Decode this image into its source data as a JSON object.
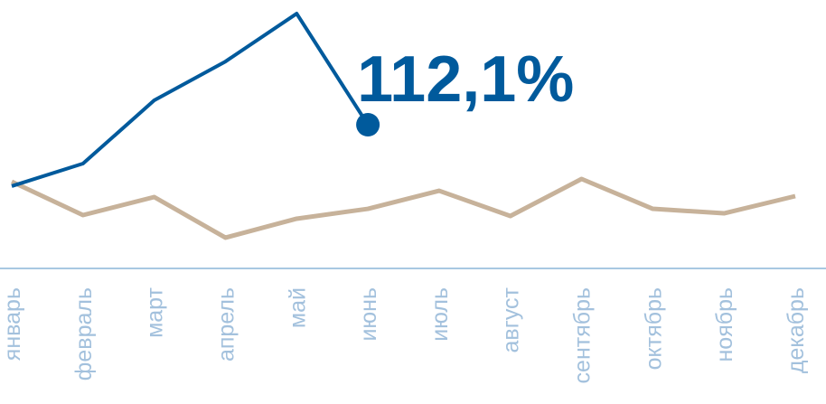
{
  "chart_data": {
    "type": "line",
    "categories": [
      "январь",
      "февраль",
      "март",
      "апрель",
      "май",
      "июнь",
      "июль",
      "август",
      "сентябрь",
      "октябрь",
      "ноябрь",
      "декабрь"
    ],
    "series": [
      {
        "color": "#c7b29a",
        "values": [
          67.7,
          41.6,
          55.7,
          24.0,
          38.8,
          46.5,
          60.6,
          40.9,
          69.8,
          46.5,
          43.0,
          56.4
        ]
      },
      {
        "color": "#005a9c",
        "values": [
          64.2,
          81.8,
          131.1,
          161.4,
          198.8,
          112.1,
          null,
          null,
          null,
          null,
          null,
          null
        ],
        "value_labels": [
          null,
          null,
          null,
          null,
          null,
          "112,1%",
          null,
          null,
          null,
          null,
          null,
          null
        ]
      }
    ],
    "ylim": [
      0,
      209.4
    ]
  }
}
